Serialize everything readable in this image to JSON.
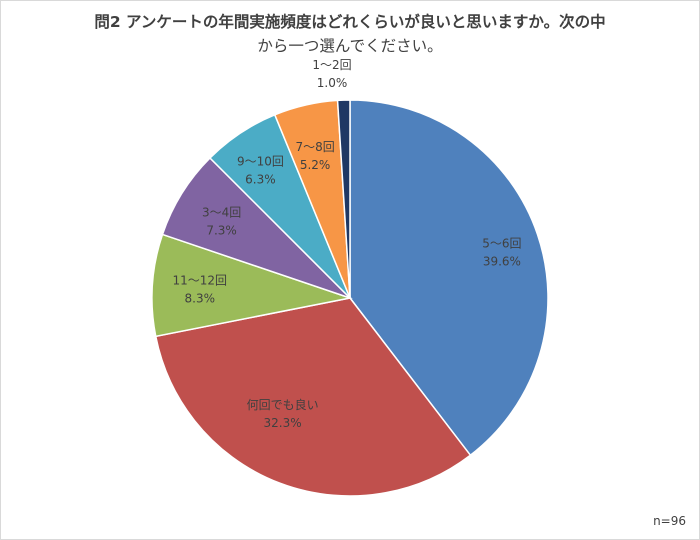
{
  "chart_data": {
    "type": "pie",
    "title_line1": "問2 アンケートの年間実施頻度はどれくらいが良いと思いますか。次の中",
    "title_line2": "から一つ選んでください。",
    "note": "n=96",
    "start_angle_deg": 0,
    "direction": "clockwise",
    "slices": [
      {
        "label": "5〜6回",
        "value": 39.6,
        "value_text": "39.6%",
        "color": "#4f81bd"
      },
      {
        "label": "何回でも良い",
        "value": 32.3,
        "value_text": "32.3%",
        "color": "#c0504d"
      },
      {
        "label": "11〜12回",
        "value": 8.3,
        "value_text": "8.3%",
        "color": "#9bbb59"
      },
      {
        "label": "3〜4回",
        "value": 7.3,
        "value_text": "7.3%",
        "color": "#8064a2"
      },
      {
        "label": "9〜10回",
        "value": 6.3,
        "value_text": "6.3%",
        "color": "#4bacc6"
      },
      {
        "label": "7〜8回",
        "value": 5.2,
        "value_text": "5.2%",
        "color": "#f79646"
      },
      {
        "label": "1〜2回",
        "value": 1.0,
        "value_text": "1.0%",
        "color": "#1f3864"
      }
    ]
  }
}
